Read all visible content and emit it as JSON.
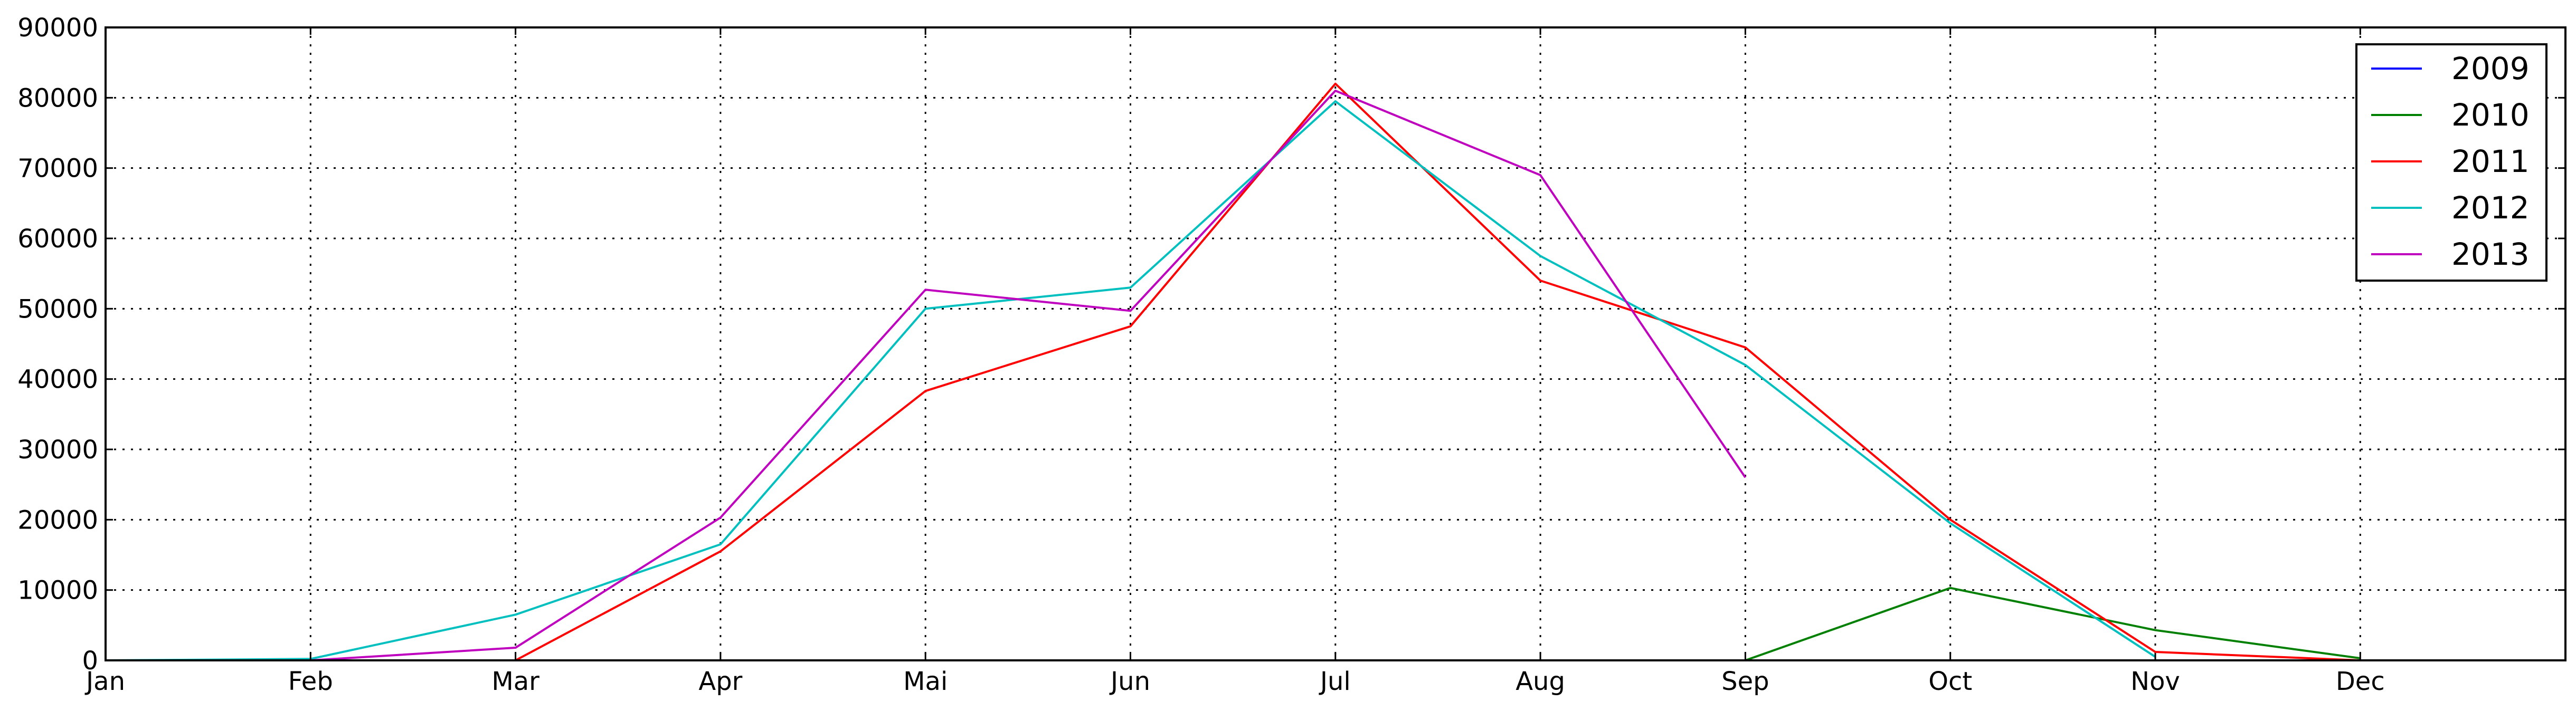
{
  "chart_data": {
    "type": "line",
    "title": "",
    "xlabel": "",
    "ylabel": "",
    "categories": [
      "Jan",
      "Feb",
      "Mar",
      "Apr",
      "Mai",
      "Jun",
      "Jul",
      "Aug",
      "Sep",
      "Oct",
      "Nov",
      "Dec"
    ],
    "ylim": [
      0,
      90000
    ],
    "yticks": [
      0,
      10000,
      20000,
      30000,
      40000,
      50000,
      60000,
      70000,
      80000,
      90000
    ],
    "grid": true,
    "legend_position": "top-right",
    "series": [
      {
        "name": "2009",
        "color": "#0000ff",
        "values": [
          null,
          null,
          null,
          null,
          null,
          null,
          null,
          null,
          null,
          null,
          null,
          null
        ]
      },
      {
        "name": "2010",
        "color": "#008000",
        "values": [
          null,
          null,
          null,
          null,
          null,
          null,
          null,
          null,
          0,
          10300,
          4300,
          300
        ]
      },
      {
        "name": "2011",
        "color": "#ff0000",
        "values": [
          null,
          null,
          0,
          15500,
          38300,
          47500,
          82000,
          54000,
          44500,
          20000,
          1200,
          0
        ]
      },
      {
        "name": "2012",
        "color": "#00bfbf",
        "values": [
          0,
          200,
          6500,
          16500,
          50000,
          53000,
          79500,
          57500,
          42000,
          19500,
          500,
          null
        ]
      },
      {
        "name": "2013",
        "color": "#bf00bf",
        "values": [
          null,
          0,
          1800,
          20300,
          52700,
          49700,
          81000,
          69000,
          26000,
          null,
          null,
          null
        ]
      }
    ]
  }
}
